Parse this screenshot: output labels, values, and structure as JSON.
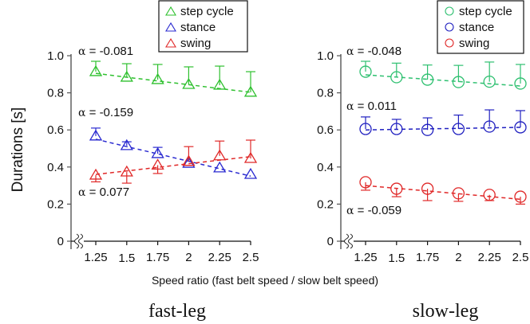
{
  "chart_data": {
    "type": "line",
    "ylabel": "Durations [s]",
    "xlabel": "Speed ratio (fast belt speed / slow belt speed)",
    "x": [
      1.25,
      1.5,
      1.75,
      2,
      2.25,
      2.5
    ],
    "x_tick_labels": [
      "1.25",
      "1.5",
      "1.75",
      "2",
      "2.25",
      "2.5"
    ],
    "y_ticks": [
      0,
      0.2,
      0.4,
      0.6,
      0.8,
      1.0
    ],
    "y_tick_labels": [
      "0",
      "0.2",
      "0.4",
      "0.6",
      "0.8",
      "1.0"
    ],
    "ylim": [
      0,
      1.0
    ],
    "axis_break": true,
    "grid": false,
    "panels": [
      {
        "title": "fast-leg",
        "marker": "triangle",
        "legend_position": "top-right",
        "series": [
          {
            "name": "step cycle",
            "color": "#2ec02e",
            "values": [
              0.914,
              0.884,
              0.871,
              0.845,
              0.841,
              0.803
            ],
            "err_upper": [
              0.97,
              0.957,
              0.953,
              0.94,
              0.944,
              0.914
            ],
            "err_lower": [
              null,
              null,
              null,
              null,
              null,
              null
            ],
            "trend": [
              0.905,
              0.884,
              0.864,
              0.844,
              0.823,
              0.803
            ],
            "alpha_label": "α = -0.081"
          },
          {
            "name": "stance",
            "color": "#2a2ad0",
            "values": [
              0.567,
              0.515,
              0.472,
              0.42,
              0.395,
              0.36
            ],
            "err_upper": [
              0.61,
              0.536,
              0.506,
              null,
              null,
              null
            ],
            "err_lower": [
              null,
              null,
              null,
              null,
              null,
              null
            ],
            "trend": [
              0.55,
              0.51,
              0.471,
              0.431,
              0.391,
              0.351
            ],
            "alpha_label": "α = -0.159"
          },
          {
            "name": "swing",
            "color": "#e02828",
            "values": [
              0.356,
              0.373,
              0.41,
              0.43,
              0.46,
              0.446
            ],
            "err_upper": [
              null,
              null,
              null,
              0.51,
              0.54,
              0.545
            ],
            "err_lower": [
              0.32,
              0.313,
              0.365,
              null,
              null,
              null
            ],
            "trend": [
              0.36,
              0.379,
              0.398,
              0.418,
              0.437,
              0.456
            ],
            "alpha_label": "α = 0.077"
          }
        ]
      },
      {
        "title": "slow-leg",
        "marker": "circle",
        "legend_position": "top-right",
        "series": [
          {
            "name": "step cycle",
            "color": "#2ec070",
            "values": [
              0.914,
              0.884,
              0.871,
              0.858,
              0.86,
              0.85
            ],
            "err_upper": [
              0.97,
              0.96,
              0.95,
              0.948,
              0.966,
              0.953
            ],
            "err_lower": [
              null,
              null,
              null,
              null,
              null,
              null
            ],
            "trend": [
              0.897,
              0.885,
              0.873,
              0.861,
              0.849,
              0.837
            ],
            "alpha_label": "α = -0.048"
          },
          {
            "name": "stance",
            "color": "#2020c0",
            "values": [
              0.605,
              0.605,
              0.6,
              0.605,
              0.618,
              0.614
            ],
            "err_upper": [
              0.67,
              0.657,
              0.665,
              0.68,
              0.708,
              0.704
            ],
            "err_lower": [
              null,
              null,
              null,
              null,
              null,
              null
            ],
            "trend": [
              0.6,
              0.603,
              0.606,
              0.608,
              0.611,
              0.614
            ],
            "alpha_label": "α = 0.011"
          },
          {
            "name": "swing",
            "color": "#e02828",
            "values": [
              0.318,
              0.283,
              0.283,
              0.258,
              0.25,
              0.24
            ],
            "err_upper": [
              null,
              null,
              null,
              null,
              null,
              null
            ],
            "err_lower": [
              0.275,
              0.24,
              0.219,
              0.215,
              0.219,
              0.2
            ],
            "trend": [
              0.3,
              0.285,
              0.271,
              0.256,
              0.241,
              0.226
            ],
            "alpha_label": "α = -0.059"
          }
        ]
      }
    ]
  }
}
